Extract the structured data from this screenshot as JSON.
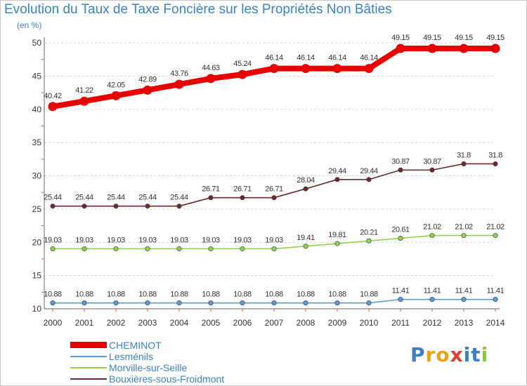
{
  "chart_data": {
    "type": "line",
    "title": "Evolution du Taux de Taxe Foncière sur les Propriétés Non Bâties",
    "ylabel": "(en %)",
    "xlabel": "",
    "ylim": [
      10,
      50
    ],
    "yticks": [
      10,
      15,
      20,
      25,
      30,
      35,
      40,
      45,
      50
    ],
    "grid": "horizontal-dashed",
    "x": [
      "2000",
      "2001",
      "2002",
      "2003",
      "2004",
      "2005",
      "2006",
      "2007",
      "2008",
      "2009",
      "2010",
      "2011",
      "2012",
      "2013",
      "2014"
    ],
    "series": [
      {
        "name": "CHEMINOT",
        "color": "#e60000",
        "emphasis": true,
        "values": [
          40.42,
          41.22,
          42.05,
          42.89,
          43.76,
          44.63,
          45.24,
          46.14,
          46.14,
          46.14,
          46.14,
          49.15,
          49.15,
          49.15,
          49.15
        ],
        "labels": [
          "40.42",
          "41.22",
          "42.05",
          "42.89",
          "43.76",
          "44.63",
          "45.24",
          "46.14",
          "46.14",
          "46.14",
          "46.14",
          "49.15",
          "49.15",
          "49.15",
          "49.15"
        ]
      },
      {
        "name": "Lesménils",
        "color": "#5b9bd5",
        "emphasis": false,
        "values": [
          10.88,
          10.88,
          10.88,
          10.88,
          10.88,
          10.88,
          10.88,
          10.88,
          10.88,
          10.88,
          10.88,
          11.41,
          11.41,
          11.41,
          11.41
        ],
        "labels": [
          "10.88",
          "10.88",
          "10.88",
          "10.88",
          "10.88",
          "10.88",
          "10.88",
          "10.88",
          "10.88",
          "10.88",
          "10.88",
          "11.41",
          "11.41",
          "11.41",
          "11.41"
        ]
      },
      {
        "name": "Morville-sur-Seille",
        "color": "#92d050",
        "emphasis": false,
        "values": [
          19.03,
          19.03,
          19.03,
          19.03,
          19.03,
          19.03,
          19.03,
          19.03,
          19.41,
          19.81,
          20.21,
          20.61,
          21.02,
          21.02,
          21.02
        ],
        "labels": [
          "19.03",
          "19.03",
          "19.03",
          "19.03",
          "19.03",
          "19.03",
          "19.03",
          "19.03",
          "19.41",
          "19.81",
          "20.21",
          "20.61",
          "21.02",
          "21.02",
          "21.02"
        ]
      },
      {
        "name": "Bouxières-sous-Froidmont",
        "color": "#6b2a2a",
        "emphasis": false,
        "values": [
          25.44,
          25.44,
          25.44,
          25.44,
          25.44,
          26.71,
          26.71,
          26.71,
          28.04,
          29.44,
          29.44,
          30.87,
          30.87,
          31.8,
          31.8
        ],
        "labels": [
          "25.44",
          "25.44",
          "25.44",
          "25.44",
          "25.44",
          "26.71",
          "26.71",
          "26.71",
          "28.04",
          "29.44",
          "29.44",
          "30.87",
          "30.87",
          "31.8",
          "31.8"
        ]
      }
    ],
    "legend_position": "bottom-left"
  },
  "branding": {
    "logo_text": "Proxiti",
    "logo_letters": [
      "P",
      "r",
      "o",
      "x",
      "i",
      "t",
      "i"
    ],
    "logo_colors": [
      "#3d7fc1",
      "#e8a317",
      "#e8a317",
      "#e03c31",
      "#3d7fc1",
      "#3d7fc1",
      "#8cc63f"
    ]
  }
}
